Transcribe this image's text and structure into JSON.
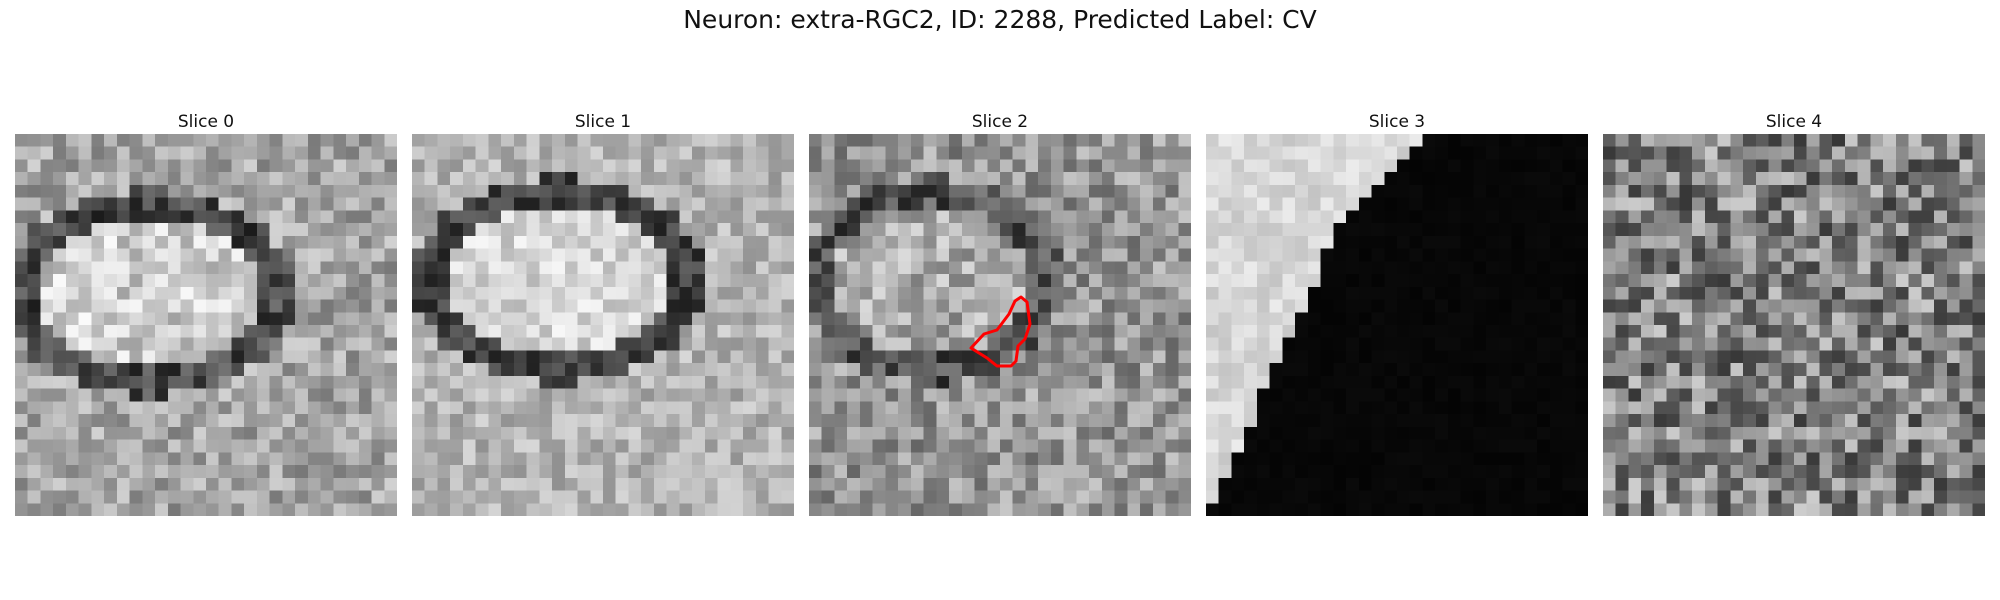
{
  "figure": {
    "title": "Neuron: extra-RGC2, ID: 2288, Predicted Label: CV"
  },
  "slices": [
    {
      "label": "Slice 0",
      "pattern": "ring-cell"
    },
    {
      "label": "Slice 1",
      "pattern": "ring-cell"
    },
    {
      "label": "Slice 2",
      "pattern": "ring-cell-faint",
      "has_contour": true,
      "contour_color": "#ff0000"
    },
    {
      "label": "Slice 3",
      "pattern": "bright-corner-dark"
    },
    {
      "label": "Slice 4",
      "pattern": "noise"
    }
  ]
}
